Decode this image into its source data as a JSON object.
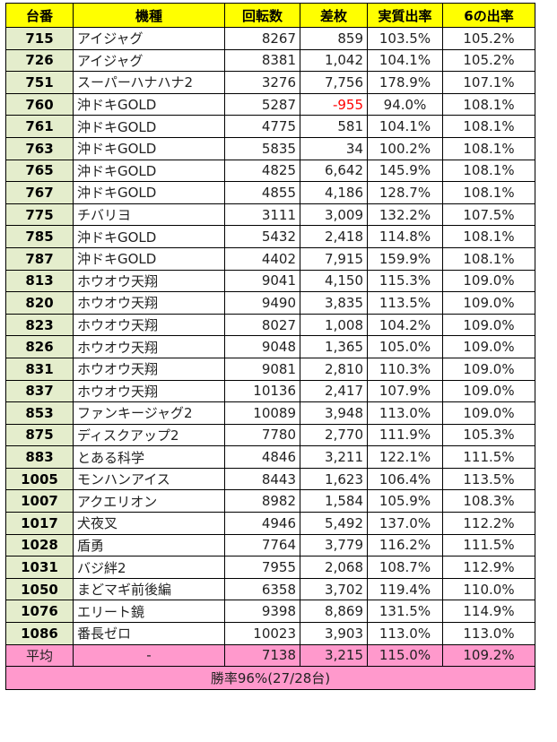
{
  "table": {
    "headers": [
      "台番",
      "機種",
      "回転数",
      "差枚",
      "実質出率",
      "6の出率"
    ],
    "rows": [
      {
        "id": "715",
        "name": "アイジャグ",
        "spins": "8267",
        "diff": "859",
        "rate": "103.5%",
        "six_rate": "105.2%"
      },
      {
        "id": "726",
        "name": "アイジャグ",
        "spins": "8381",
        "diff": "1,042",
        "rate": "104.1%",
        "six_rate": "105.2%"
      },
      {
        "id": "751",
        "name": "スーパーハナハナ2",
        "spins": "3276",
        "diff": "7,756",
        "rate": "178.9%",
        "six_rate": "107.1%"
      },
      {
        "id": "760",
        "name": "沖ドキGOLD",
        "spins": "5287",
        "diff": "-955",
        "rate": "94.0%",
        "six_rate": "108.1%",
        "negative": true
      },
      {
        "id": "761",
        "name": "沖ドキGOLD",
        "spins": "4775",
        "diff": "581",
        "rate": "104.1%",
        "six_rate": "108.1%"
      },
      {
        "id": "763",
        "name": "沖ドキGOLD",
        "spins": "5835",
        "diff": "34",
        "rate": "100.2%",
        "six_rate": "108.1%"
      },
      {
        "id": "765",
        "name": "沖ドキGOLD",
        "spins": "4825",
        "diff": "6,642",
        "rate": "145.9%",
        "six_rate": "108.1%"
      },
      {
        "id": "767",
        "name": "沖ドキGOLD",
        "spins": "4855",
        "diff": "4,186",
        "rate": "128.7%",
        "six_rate": "108.1%"
      },
      {
        "id": "775",
        "name": "チバリヨ",
        "spins": "3111",
        "diff": "3,009",
        "rate": "132.2%",
        "six_rate": "107.5%"
      },
      {
        "id": "785",
        "name": "沖ドキGOLD",
        "spins": "5432",
        "diff": "2,418",
        "rate": "114.8%",
        "six_rate": "108.1%"
      },
      {
        "id": "787",
        "name": "沖ドキGOLD",
        "spins": "4402",
        "diff": "7,915",
        "rate": "159.9%",
        "six_rate": "108.1%"
      },
      {
        "id": "813",
        "name": "ホウオウ天翔",
        "spins": "9041",
        "diff": "4,150",
        "rate": "115.3%",
        "six_rate": "109.0%"
      },
      {
        "id": "820",
        "name": "ホウオウ天翔",
        "spins": "9490",
        "diff": "3,835",
        "rate": "113.5%",
        "six_rate": "109.0%"
      },
      {
        "id": "823",
        "name": "ホウオウ天翔",
        "spins": "8027",
        "diff": "1,008",
        "rate": "104.2%",
        "six_rate": "109.0%"
      },
      {
        "id": "826",
        "name": "ホウオウ天翔",
        "spins": "9048",
        "diff": "1,365",
        "rate": "105.0%",
        "six_rate": "109.0%"
      },
      {
        "id": "831",
        "name": "ホウオウ天翔",
        "spins": "9081",
        "diff": "2,810",
        "rate": "110.3%",
        "six_rate": "109.0%"
      },
      {
        "id": "837",
        "name": "ホウオウ天翔",
        "spins": "10136",
        "diff": "2,417",
        "rate": "107.9%",
        "six_rate": "109.0%"
      },
      {
        "id": "853",
        "name": "ファンキージャグ2",
        "spins": "10089",
        "diff": "3,948",
        "rate": "113.0%",
        "six_rate": "109.0%"
      },
      {
        "id": "875",
        "name": "ディスクアップ2",
        "spins": "7780",
        "diff": "2,770",
        "rate": "111.9%",
        "six_rate": "105.3%"
      },
      {
        "id": "883",
        "name": "とある科学",
        "spins": "4846",
        "diff": "3,211",
        "rate": "122.1%",
        "six_rate": "111.5%"
      },
      {
        "id": "1005",
        "name": "モンハンアイス",
        "spins": "8443",
        "diff": "1,623",
        "rate": "106.4%",
        "six_rate": "113.5%"
      },
      {
        "id": "1007",
        "name": "アクエリオン",
        "spins": "8982",
        "diff": "1,584",
        "rate": "105.9%",
        "six_rate": "108.3%"
      },
      {
        "id": "1017",
        "name": "犬夜叉",
        "spins": "4946",
        "diff": "5,492",
        "rate": "137.0%",
        "six_rate": "112.2%"
      },
      {
        "id": "1028",
        "name": "盾勇",
        "spins": "7764",
        "diff": "3,779",
        "rate": "116.2%",
        "six_rate": "111.5%"
      },
      {
        "id": "1031",
        "name": "バジ絆2",
        "spins": "7955",
        "diff": "2,068",
        "rate": "108.7%",
        "six_rate": "112.9%"
      },
      {
        "id": "1050",
        "name": "まどマギ前後編",
        "spins": "6358",
        "diff": "3,702",
        "rate": "119.4%",
        "six_rate": "110.0%"
      },
      {
        "id": "1076",
        "name": "エリート鏡",
        "spins": "9398",
        "diff": "8,869",
        "rate": "131.5%",
        "six_rate": "114.9%"
      },
      {
        "id": "1086",
        "name": "番長ゼロ",
        "spins": "10023",
        "diff": "3,903",
        "rate": "113.0%",
        "six_rate": "113.0%"
      }
    ],
    "average": {
      "label": "平均",
      "name": "-",
      "spins": "7138",
      "diff": "3,215",
      "rate": "115.0%",
      "six_rate": "109.2%"
    },
    "win_rate": "勝率96%(27/28台)"
  },
  "colors": {
    "header_bg": "#ffff00",
    "id_col_bg": "#e4edcc",
    "summary_bg": "#ff99cc",
    "negative_text": "#ff0000"
  }
}
